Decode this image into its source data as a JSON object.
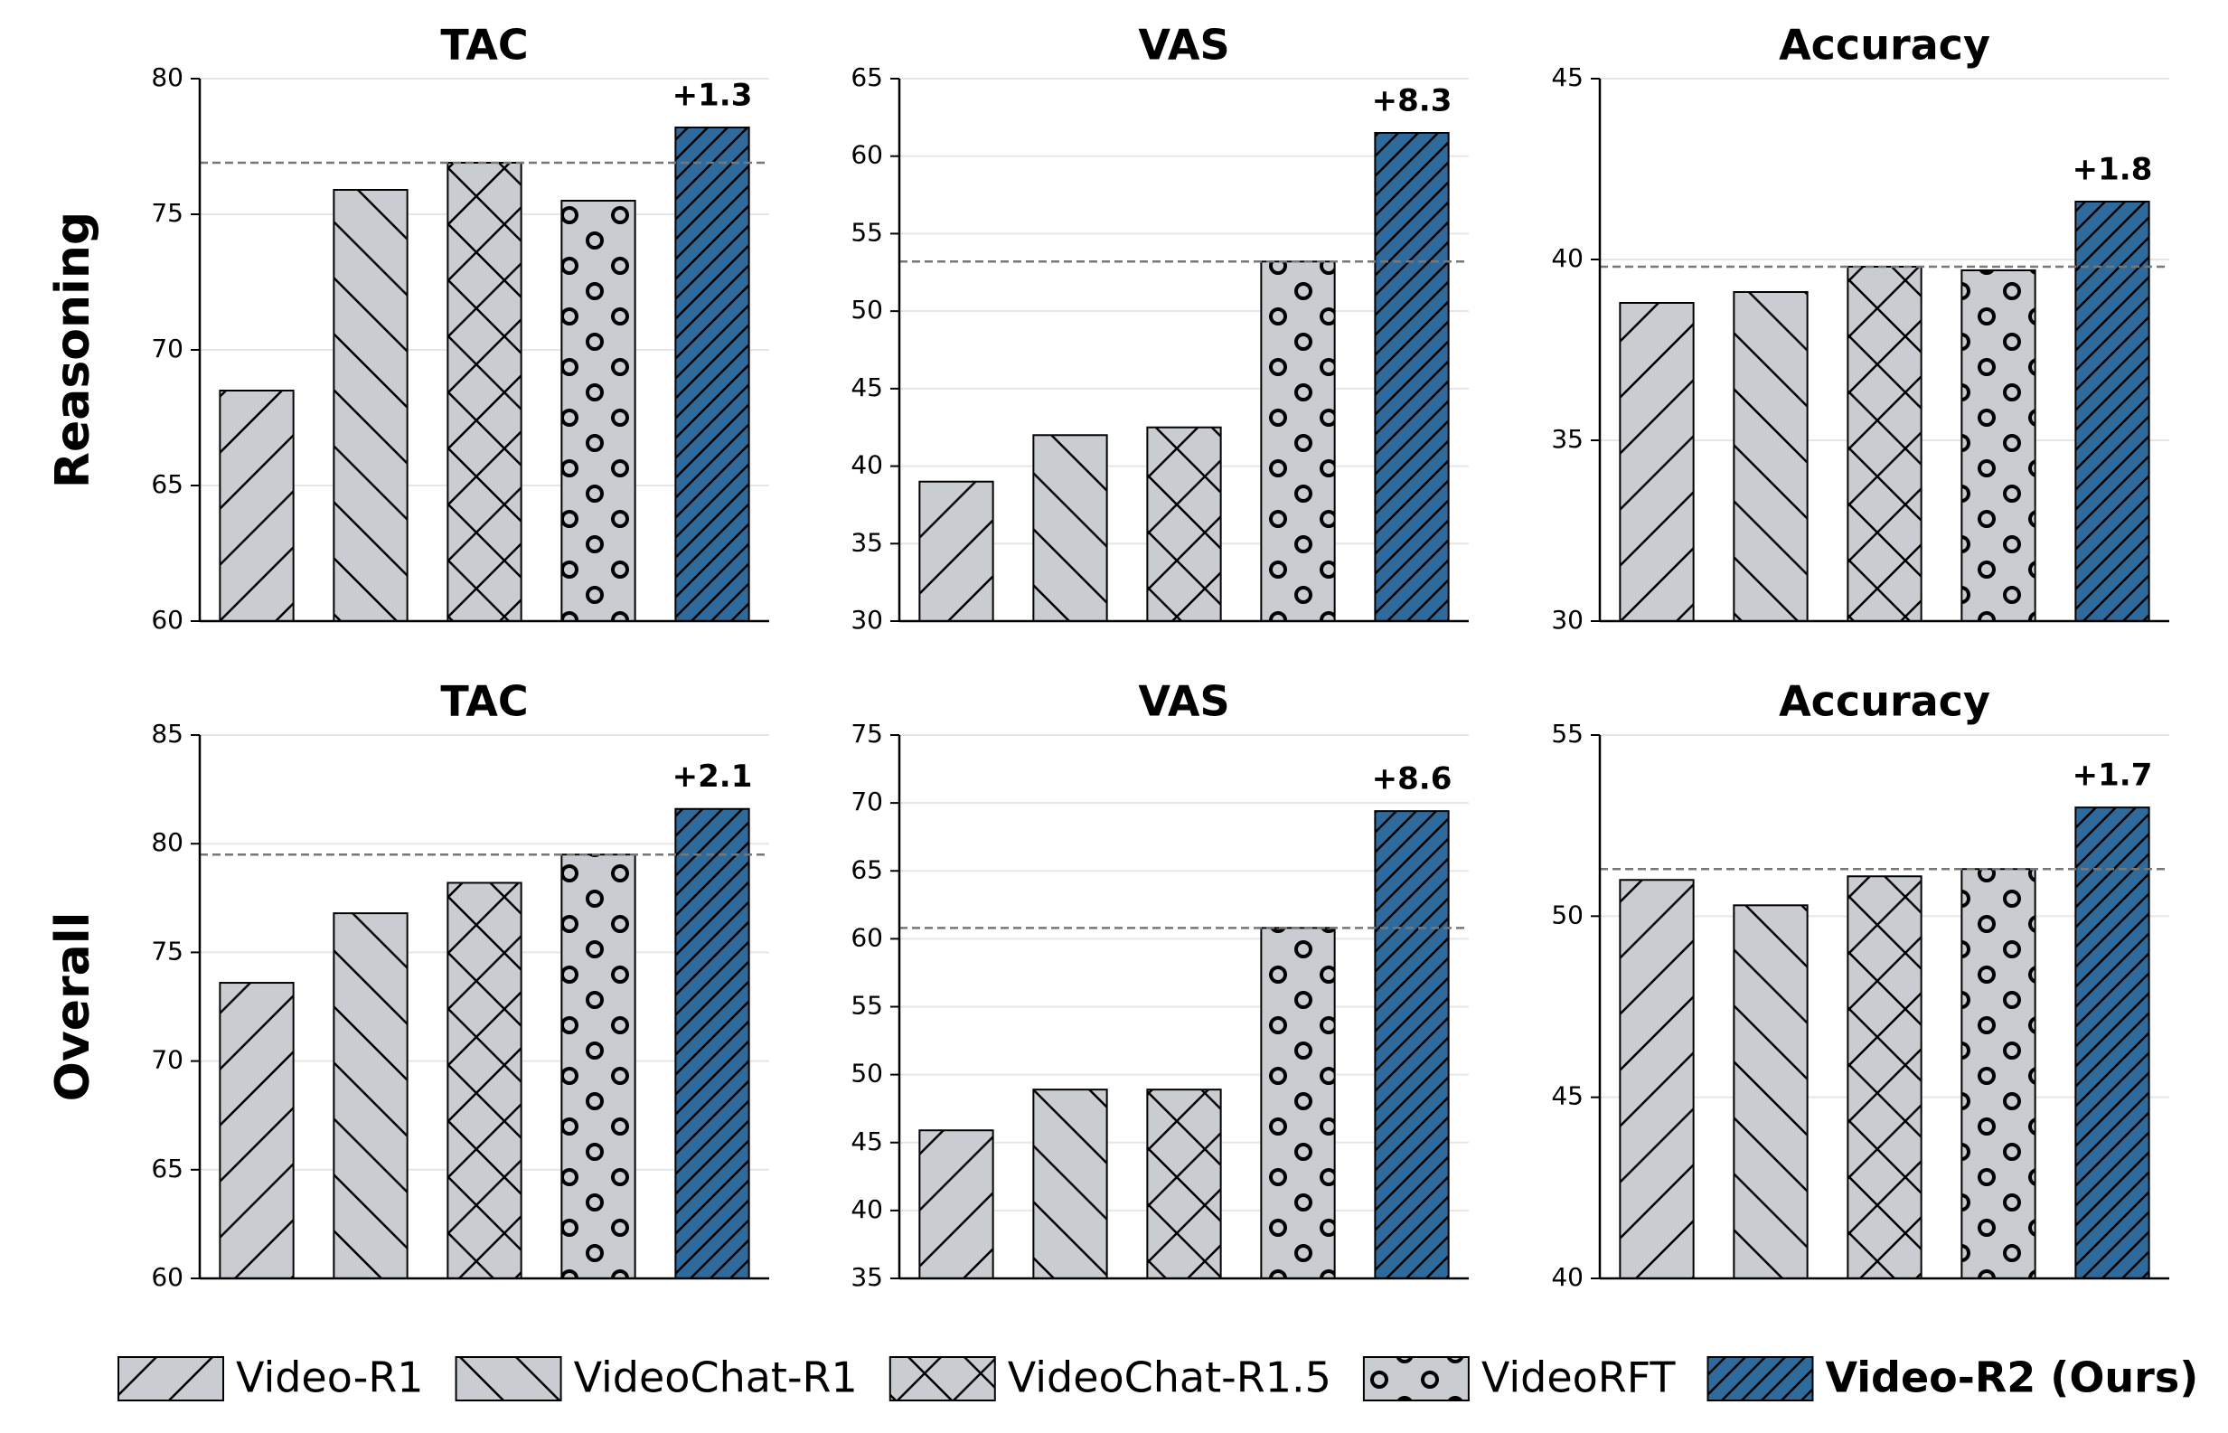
{
  "row_labels": [
    "Reasoning",
    "Overall"
  ],
  "series": [
    {
      "name": "Video-R1",
      "color": "#c9cdd1",
      "pattern": "/"
    },
    {
      "name": "VideoChat-R1",
      "color": "#c9cdd1",
      "pattern": "\\"
    },
    {
      "name": "VideoChat-R1.5",
      "color": "#c9cdd1",
      "pattern": "x"
    },
    {
      "name": "VideoRFT",
      "color": "#c9cdd1",
      "pattern": "o"
    },
    {
      "name": "Video-R2 (Ours)",
      "color": "#2f6a9c",
      "pattern": "//",
      "bold": true
    }
  ],
  "chart_data": [
    {
      "type": "bar",
      "title": "TAC",
      "values": [
        68.5,
        75.9,
        76.9,
        75.5,
        78.2
      ],
      "ylim": [
        60,
        80
      ],
      "yticks": [
        60,
        65,
        70,
        75,
        80
      ],
      "reference_line": 76.9,
      "annotation": "+1.3",
      "grid": true
    },
    {
      "type": "bar",
      "title": "VAS",
      "values": [
        39.0,
        42.0,
        42.5,
        53.2,
        61.5
      ],
      "ylim": [
        30,
        65
      ],
      "yticks": [
        30,
        35,
        40,
        45,
        50,
        55,
        60,
        65
      ],
      "reference_line": 53.2,
      "annotation": "+8.3",
      "grid": true
    },
    {
      "type": "bar",
      "title": "Accuracy",
      "values": [
        38.8,
        39.1,
        39.8,
        39.7,
        41.6
      ],
      "ylim": [
        30,
        45
      ],
      "yticks": [
        30,
        35,
        40,
        45
      ],
      "reference_line": 39.8,
      "annotation": "+1.8",
      "grid": true
    },
    {
      "type": "bar",
      "title": "TAC",
      "values": [
        73.6,
        76.8,
        78.2,
        79.5,
        81.6
      ],
      "ylim": [
        60,
        85
      ],
      "yticks": [
        60,
        65,
        70,
        75,
        80,
        85
      ],
      "reference_line": 79.5,
      "annotation": "+2.1",
      "grid": true
    },
    {
      "type": "bar",
      "title": "VAS",
      "values": [
        45.9,
        48.9,
        48.9,
        60.8,
        69.4
      ],
      "ylim": [
        35,
        75
      ],
      "yticks": [
        35,
        40,
        45,
        50,
        55,
        60,
        65,
        70,
        75
      ],
      "reference_line": 60.8,
      "annotation": "+8.6",
      "grid": true
    },
    {
      "type": "bar",
      "title": "Accuracy",
      "values": [
        51.0,
        50.3,
        51.1,
        51.3,
        53.0
      ],
      "ylim": [
        40,
        55
      ],
      "yticks": [
        40,
        45,
        50,
        55
      ],
      "reference_line": 51.3,
      "annotation": "+1.7",
      "grid": true
    }
  ]
}
